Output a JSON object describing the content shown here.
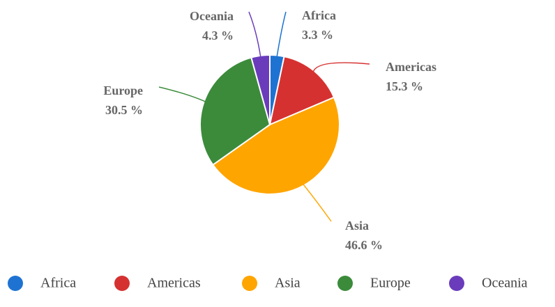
{
  "chart_data": {
    "type": "pie",
    "categories": [
      "Africa",
      "Americas",
      "Asia",
      "Europe",
      "Oceania"
    ],
    "values": [
      3.3,
      15.3,
      46.6,
      30.5,
      4.3
    ],
    "value_labels": [
      "3.3 %",
      "15.3 %",
      "46.6 %",
      "30.5 %",
      "4.3 %"
    ],
    "colors": [
      "#1e73d2",
      "#d63131",
      "#ffa500",
      "#3b8b3b",
      "#6a3cbc"
    ]
  }
}
